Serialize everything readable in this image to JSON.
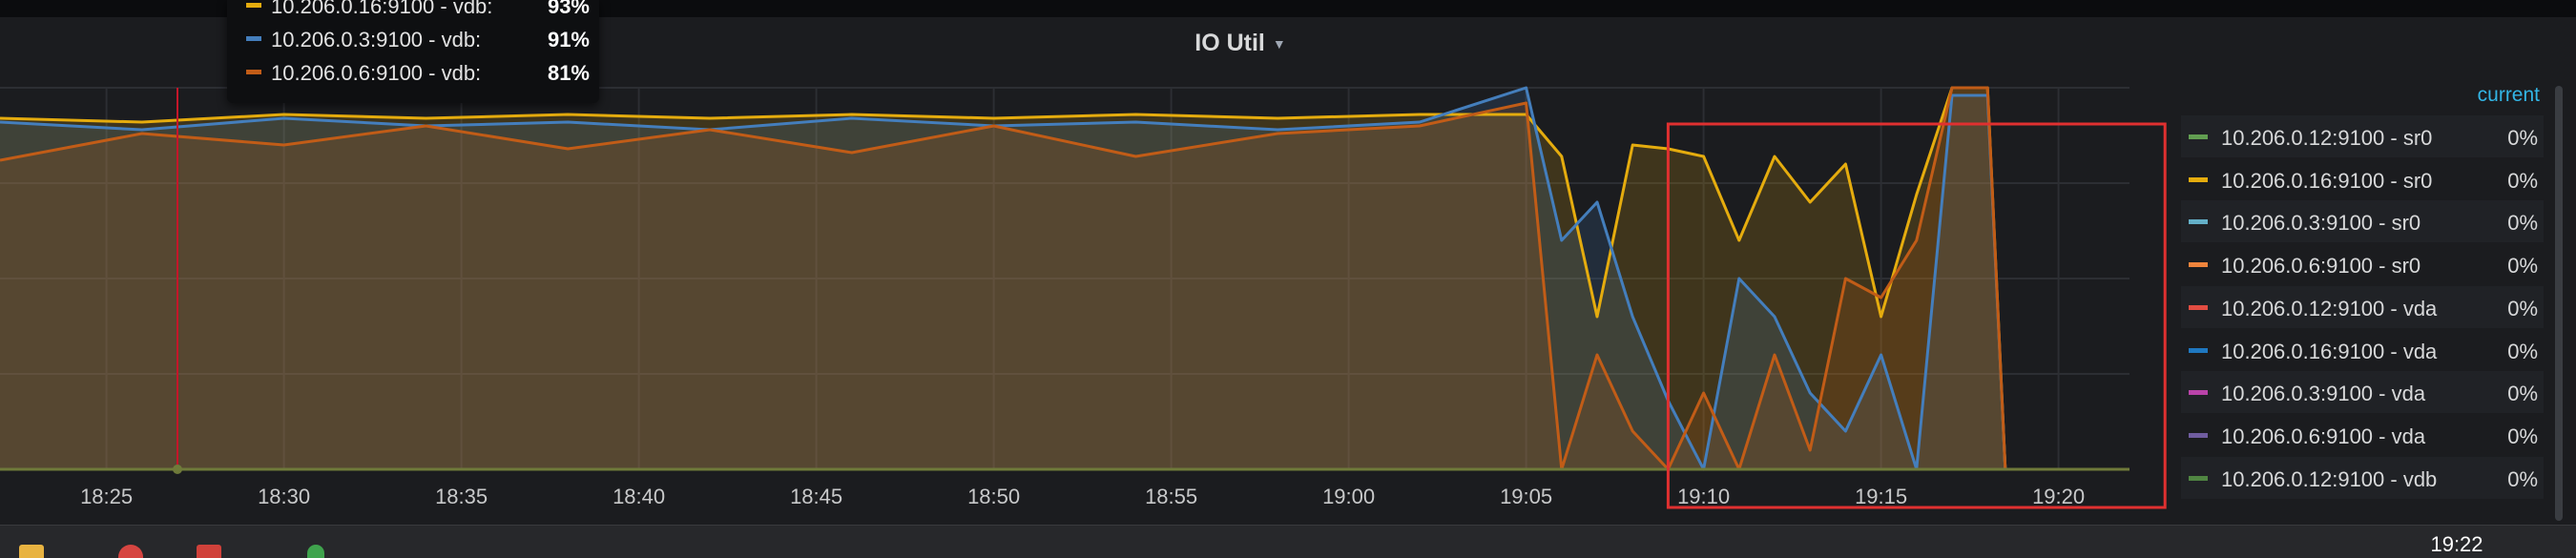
{
  "panel": {
    "title": "IO Util"
  },
  "tooltip": {
    "rows": [
      {
        "label": "10.206.0.16:9100 - vdb:",
        "value": "93%",
        "color": "#e5ac0e"
      },
      {
        "label": "10.206.0.3:9100 - vdb:",
        "value": "91%",
        "color": "#447ebc"
      },
      {
        "label": "10.206.0.6:9100 - vdb:",
        "value": "81%",
        "color": "#c15c17"
      }
    ]
  },
  "legend": {
    "header": "current",
    "items": [
      {
        "label": "10.206.0.12:9100 - sr0",
        "value": "0%",
        "color": "#629e51"
      },
      {
        "label": "10.206.0.16:9100 - sr0",
        "value": "0%",
        "color": "#e5ac0e"
      },
      {
        "label": "10.206.0.3:9100 - sr0",
        "value": "0%",
        "color": "#64b0c8"
      },
      {
        "label": "10.206.0.6:9100 - sr0",
        "value": "0%",
        "color": "#ef843c"
      },
      {
        "label": "10.206.0.12:9100 - vda",
        "value": "0%",
        "color": "#e24d42"
      },
      {
        "label": "10.206.0.16:9100 - vda",
        "value": "0%",
        "color": "#1f78c1"
      },
      {
        "label": "10.206.0.3:9100 - vda",
        "value": "0%",
        "color": "#ba43a9"
      },
      {
        "label": "10.206.0.6:9100 - vda",
        "value": "0%",
        "color": "#705da0"
      },
      {
        "label": "10.206.0.12:9100 - vdb",
        "value": "0%",
        "color": "#508642"
      }
    ]
  },
  "taskbar": {
    "clock": "19:22"
  },
  "chart_data": {
    "type": "area",
    "title": "IO Util",
    "xlabel": "",
    "ylabel": "",
    "x_ticks": [
      "18:25",
      "18:30",
      "18:35",
      "18:40",
      "18:45",
      "18:50",
      "18:55",
      "19:00",
      "19:05",
      "19:10",
      "19:15",
      "19:20"
    ],
    "xlim": [
      "18:22",
      "19:22"
    ],
    "ylim": [
      0,
      100
    ],
    "grid": true,
    "legend_position": "right",
    "cursor_time": "18:27",
    "highlight_range": [
      "19:09",
      "19:23"
    ],
    "series": [
      {
        "name": "10.206.0.16:9100 - vdb",
        "color": "#e5ac0e",
        "points": [
          [
            "18:22",
            92
          ],
          [
            "18:26",
            91
          ],
          [
            "18:30",
            93
          ],
          [
            "18:34",
            92
          ],
          [
            "18:38",
            93
          ],
          [
            "18:42",
            92
          ],
          [
            "18:46",
            93
          ],
          [
            "18:50",
            92
          ],
          [
            "18:54",
            93
          ],
          [
            "18:58",
            92
          ],
          [
            "19:02",
            93
          ],
          [
            "19:05",
            93
          ],
          [
            "19:06",
            82
          ],
          [
            "19:07",
            40
          ],
          [
            "19:08",
            85
          ],
          [
            "19:09",
            84
          ],
          [
            "19:10",
            82
          ],
          [
            "19:11",
            60
          ],
          [
            "19:12",
            82
          ],
          [
            "19:13",
            70
          ],
          [
            "19:14",
            80
          ],
          [
            "19:15",
            40
          ],
          [
            "19:16",
            72
          ],
          [
            "19:17",
            100
          ],
          [
            "19:18",
            100
          ],
          [
            "19:18.5",
            0
          ],
          [
            "19:22",
            0
          ]
        ]
      },
      {
        "name": "10.206.0.3:9100 - vdb",
        "color": "#447ebc",
        "points": [
          [
            "18:22",
            91
          ],
          [
            "18:26",
            89
          ],
          [
            "18:30",
            92
          ],
          [
            "18:34",
            90
          ],
          [
            "18:38",
            91
          ],
          [
            "18:42",
            89
          ],
          [
            "18:46",
            92
          ],
          [
            "18:50",
            90
          ],
          [
            "18:54",
            91
          ],
          [
            "18:58",
            89
          ],
          [
            "19:02",
            91
          ],
          [
            "19:05",
            100
          ],
          [
            "19:06",
            60
          ],
          [
            "19:07",
            70
          ],
          [
            "19:08",
            40
          ],
          [
            "19:09",
            18
          ],
          [
            "19:10",
            0
          ],
          [
            "19:11",
            50
          ],
          [
            "19:12",
            40
          ],
          [
            "19:13",
            20
          ],
          [
            "19:14",
            10
          ],
          [
            "19:15",
            30
          ],
          [
            "19:16",
            0
          ],
          [
            "19:17",
            98
          ],
          [
            "19:18",
            98
          ],
          [
            "19:18.5",
            0
          ],
          [
            "19:22",
            0
          ]
        ]
      },
      {
        "name": "10.206.0.6:9100 - vdb",
        "color": "#c15c17",
        "points": [
          [
            "18:22",
            81
          ],
          [
            "18:26",
            88
          ],
          [
            "18:30",
            85
          ],
          [
            "18:34",
            90
          ],
          [
            "18:38",
            84
          ],
          [
            "18:42",
            89
          ],
          [
            "18:46",
            83
          ],
          [
            "18:50",
            90
          ],
          [
            "18:54",
            82
          ],
          [
            "18:58",
            88
          ],
          [
            "19:02",
            90
          ],
          [
            "19:05",
            96
          ],
          [
            "19:06",
            0
          ],
          [
            "19:07",
            30
          ],
          [
            "19:08",
            10
          ],
          [
            "19:09",
            0
          ],
          [
            "19:10",
            20
          ],
          [
            "19:11",
            0
          ],
          [
            "19:12",
            30
          ],
          [
            "19:13",
            5
          ],
          [
            "19:14",
            50
          ],
          [
            "19:15",
            45
          ],
          [
            "19:16",
            60
          ],
          [
            "19:17",
            100
          ],
          [
            "19:18",
            100
          ],
          [
            "19:18.5",
            0
          ],
          [
            "19:22",
            0
          ]
        ]
      }
    ]
  }
}
